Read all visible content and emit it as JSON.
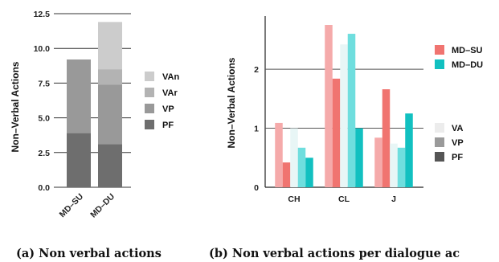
{
  "chart_data": [
    {
      "type": "bar",
      "stacked": true,
      "caption": "(a) Non verbal actions",
      "ylabel": "Non–Verbal Actions",
      "ylim": [
        0,
        12.5
      ],
      "yticks": [
        "0.0",
        "2.5",
        "5.0",
        "7.5",
        "10.0",
        "12.5"
      ],
      "categories": [
        "MD–SU",
        "MD–DU"
      ],
      "series": [
        {
          "name": "PF",
          "color": "#6e6e6e",
          "values": [
            3.9,
            3.1
          ]
        },
        {
          "name": "VP",
          "color": "#999999",
          "values": [
            5.3,
            4.3
          ]
        },
        {
          "name": "VAr",
          "color": "#b3b3b3",
          "values": [
            0,
            1.1
          ]
        },
        {
          "name": "VAn",
          "color": "#cccccc",
          "values": [
            0,
            3.4
          ]
        }
      ],
      "legend_position": "right",
      "grid": "horizontal"
    },
    {
      "type": "bar",
      "caption": "(b) Non verbal actions per dialogue ac",
      "ylabel": "Non–Verbal Actions",
      "ylim": [
        0,
        2.9
      ],
      "yticks": [
        "0",
        "1",
        "2"
      ],
      "categories": [
        "CH",
        "CL",
        "J"
      ],
      "series": [
        {
          "name": "MD–SU",
          "part": "VA",
          "color": "#f5aaaa",
          "values": [
            1.09,
            2.75,
            0.84
          ]
        },
        {
          "name": "MD–SU",
          "part": "VP",
          "color": "#f07470",
          "values": [
            0.42,
            1.84,
            1.66
          ]
        },
        {
          "name": "MD–DU",
          "part": "VA",
          "color": "#e8f6f6",
          "values": [
            1.0,
            2.42,
            0.74
          ]
        },
        {
          "name": "MD–DU",
          "part": "VP",
          "color": "#6fdede",
          "values": [
            0.67,
            2.6,
            0.67
          ]
        },
        {
          "name": "MD–DU",
          "part": "PF",
          "color": "#12c0c0",
          "values": [
            0.5,
            1.0,
            1.25
          ]
        }
      ],
      "legend_groups": [
        {
          "label": "MD–SU",
          "color": "#f07470"
        },
        {
          "label": "MD–DU",
          "color": "#12c0c0"
        }
      ],
      "legend_parts": [
        {
          "label": "VA",
          "color": "#ececec"
        },
        {
          "label": "VP",
          "color": "#9a9a9a"
        },
        {
          "label": "PF",
          "color": "#555555"
        }
      ],
      "grid": "horizontal"
    }
  ]
}
